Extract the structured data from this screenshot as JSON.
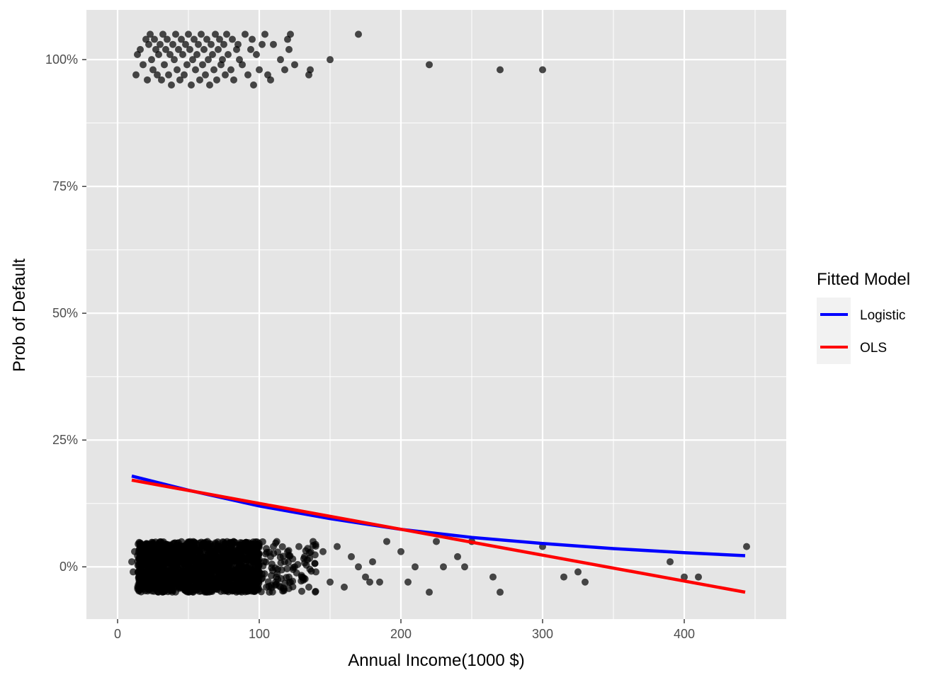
{
  "chart_data": {
    "type": "scatter",
    "xlabel": "Annual Income(1000 $)",
    "ylabel": "Prob of Default",
    "xlim": [
      -22,
      472
    ],
    "ylim": [
      -0.103,
      1.098
    ],
    "x_ticks": [
      0,
      100,
      200,
      300,
      400
    ],
    "x_tick_labels": [
      "0",
      "100",
      "200",
      "300",
      "400"
    ],
    "y_ticks": [
      0,
      0.25,
      0.5,
      0.75,
      1.0
    ],
    "y_tick_labels": [
      "0%",
      "25%",
      "50%",
      "75%",
      "100%"
    ],
    "grid": true,
    "background": "#e5e5e5",
    "grid_color": "#ffffff",
    "point_color": "#000000",
    "point_opacity": 0.7,
    "jitter_height": 0.05,
    "legend": {
      "title": "Fitted Model",
      "placement": "right",
      "entries": [
        {
          "name": "Logistic",
          "color": "#0000ff"
        },
        {
          "name": "OLS",
          "color": "#ff0000"
        }
      ]
    },
    "series": [
      {
        "name": "Logistic",
        "type": "line",
        "color": "#0000ff",
        "x": [
          10,
          50,
          100,
          150,
          200,
          250,
          300,
          350,
          400,
          443
        ],
        "y": [
          0.179,
          0.151,
          0.12,
          0.095,
          0.074,
          0.058,
          0.046,
          0.036,
          0.028,
          0.022
        ]
      },
      {
        "name": "OLS",
        "type": "line",
        "color": "#ff0000",
        "x": [
          10,
          443
        ],
        "y": [
          0.171,
          -0.05
        ]
      }
    ],
    "points": {
      "default_group": {
        "y": 1,
        "x": [
          13,
          14,
          16,
          18,
          20,
          21,
          22,
          23,
          24,
          25,
          26,
          27,
          28,
          29,
          30,
          31,
          32,
          33,
          34,
          35,
          36,
          37,
          38,
          39,
          40,
          41,
          42,
          43,
          44,
          45,
          46,
          47,
          48,
          49,
          50,
          51,
          52,
          53,
          54,
          55,
          56,
          57,
          58,
          59,
          60,
          61,
          62,
          63,
          64,
          65,
          66,
          67,
          68,
          69,
          70,
          71,
          72,
          73,
          74,
          75,
          76,
          77,
          78,
          80,
          81,
          82,
          84,
          85,
          86,
          88,
          90,
          92,
          94,
          95,
          96,
          98,
          100,
          102,
          104,
          106,
          108,
          110,
          115,
          118,
          120,
          121,
          122,
          125,
          135,
          136,
          150,
          170,
          220,
          270,
          300
        ],
        "jitter": [
          -0.03,
          0.01,
          0.02,
          -0.01,
          0.04,
          -0.04,
          0.03,
          0.05,
          0.0,
          -0.02,
          0.04,
          0.02,
          -0.03,
          0.01,
          0.03,
          -0.04,
          0.05,
          -0.01,
          0.02,
          0.04,
          -0.03,
          0.01,
          -0.05,
          0.03,
          0.0,
          0.05,
          -0.02,
          0.02,
          -0.04,
          0.04,
          0.01,
          -0.03,
          0.03,
          -0.01,
          0.05,
          0.02,
          -0.05,
          0.0,
          0.04,
          -0.02,
          0.01,
          0.03,
          -0.04,
          0.05,
          -0.01,
          0.02,
          -0.03,
          0.04,
          0.0,
          -0.05,
          0.03,
          0.01,
          -0.02,
          0.05,
          -0.04,
          0.02,
          0.04,
          -0.01,
          0.0,
          0.03,
          -0.03,
          0.05,
          0.01,
          -0.02,
          0.04,
          -0.04,
          0.02,
          0.03,
          0.0,
          -0.01,
          0.05,
          -0.03,
          0.02,
          0.04,
          -0.05,
          0.01,
          -0.02,
          0.03,
          0.05,
          -0.03,
          -0.04,
          0.03,
          0.0,
          -0.02,
          0.04,
          0.02,
          0.05,
          -0.01,
          -0.03,
          -0.02,
          0.0,
          0.05,
          -0.01,
          -0.02,
          -0.02
        ]
      },
      "non_default_group": {
        "y": 0,
        "x_dense_range": [
          14,
          100
        ],
        "x_sparse": [
          10,
          11,
          12,
          105,
          108,
          110,
          112,
          115,
          118,
          120,
          122,
          125,
          128,
          130,
          132,
          135,
          138,
          140,
          145,
          150,
          155,
          160,
          165,
          170,
          175,
          178,
          180,
          185,
          190,
          200,
          205,
          210,
          220,
          225,
          230,
          240,
          245,
          250,
          265,
          270,
          300,
          315,
          325,
          330,
          390,
          400,
          410,
          444
        ],
        "x_sparse_jitter": [
          0.01,
          -0.01,
          0.03,
          -0.04,
          0.02,
          0.04,
          -0.02,
          -0.04,
          0.01,
          0.03,
          -0.03,
          0.0,
          0.04,
          -0.02,
          0.02,
          -0.04,
          0.05,
          -0.01,
          0.03,
          -0.03,
          0.04,
          -0.04,
          0.02,
          0.0,
          -0.02,
          -0.03,
          0.01,
          -0.03,
          0.05,
          0.03,
          -0.03,
          0.0,
          -0.05,
          0.05,
          0.0,
          0.02,
          0.0,
          0.05,
          -0.02,
          -0.05,
          0.04,
          -0.02,
          -0.01,
          -0.03,
          0.01,
          -0.02,
          -0.02,
          0.04
        ]
      }
    }
  }
}
